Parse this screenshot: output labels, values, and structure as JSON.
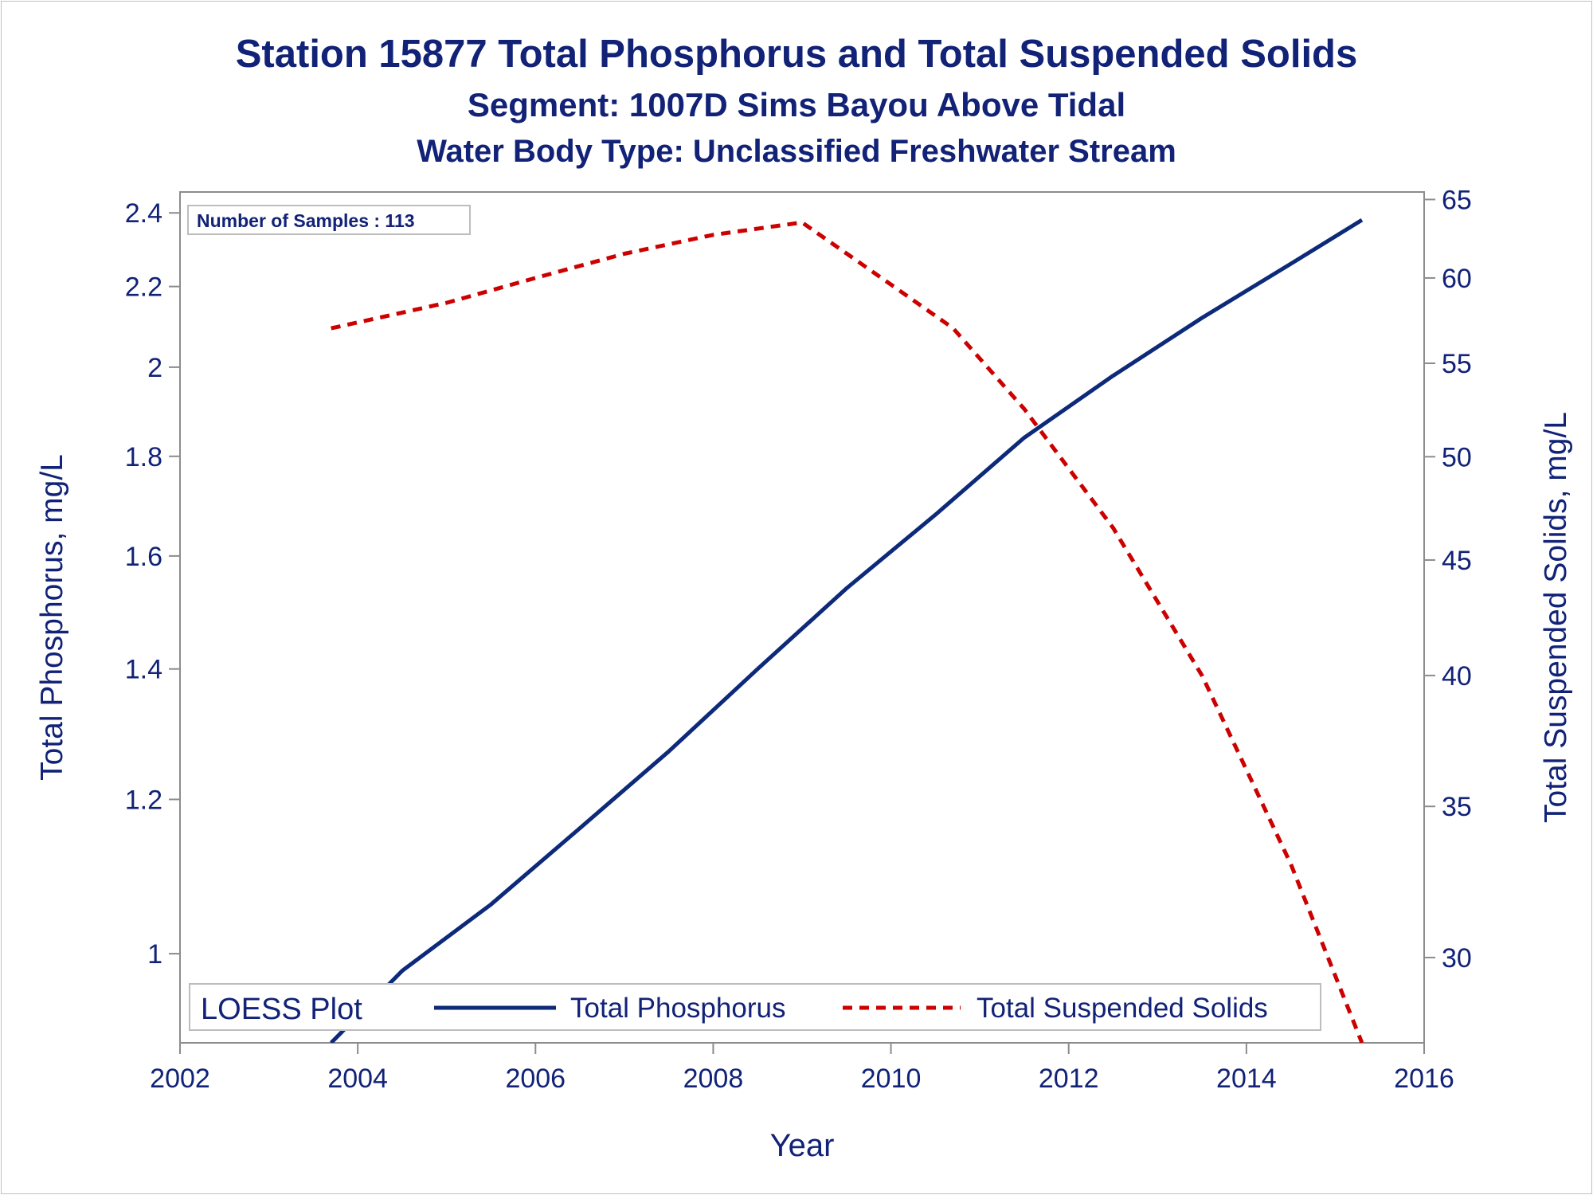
{
  "titles": {
    "line1": "Station 15877  Total Phosphorus and Total Suspended Solids",
    "line2": "Segment: 1007D  Sims Bayou Above Tidal",
    "line3": "Water Body Type: Unclassified Freshwater Stream"
  },
  "inset": {
    "label": "Number of Samples : 113"
  },
  "legend": {
    "title": "LOESS Plot",
    "items": [
      "Total Phosphorus",
      "Total Suspended Solids"
    ]
  },
  "colors": {
    "text": "#112277",
    "tp": "#0d2a7a",
    "tss": "#cc0000",
    "axis": "#8c8c8c"
  },
  "chart_data": {
    "type": "line",
    "xlabel": "Year",
    "ylabel": "Total Phosphorus, mg/L",
    "y2label": "Total Suspended Solids, mg/L",
    "xlim": [
      2002,
      2016
    ],
    "ylim": [
      0.9,
      2.46
    ],
    "y2lim": [
      27.5,
      65.5
    ],
    "log_scale_y": true,
    "log_scale_y2": true,
    "xticks": [
      "2002",
      "2004",
      "2006",
      "2008",
      "2010",
      "2012",
      "2014",
      "2016"
    ],
    "yticks": [
      "1",
      "1.2",
      "1.4",
      "1.6",
      "1.8",
      "2",
      "2.2",
      "2.4"
    ],
    "y2ticks": [
      "30",
      "35",
      "40",
      "45",
      "50",
      "55",
      "60",
      "65"
    ],
    "series": [
      {
        "name": "Total Phosphorus",
        "axis": "left",
        "style": "solid",
        "x": [
          2003.7,
          2004.5,
          2005.5,
          2006.5,
          2007.5,
          2008.5,
          2009.5,
          2010.5,
          2011.5,
          2012.5,
          2013.5,
          2014.5,
          2015.3
        ],
        "y": [
          0.9,
          0.98,
          1.06,
          1.16,
          1.27,
          1.4,
          1.54,
          1.68,
          1.84,
          1.98,
          2.12,
          2.26,
          2.38
        ]
      },
      {
        "name": "Total Suspended Solids",
        "axis": "right",
        "style": "dashed",
        "x": [
          2003.7,
          2005,
          2006,
          2007,
          2008,
          2009,
          2010,
          2010.7,
          2011.5,
          2012.5,
          2013.5,
          2014.5,
          2015.3
        ],
        "y": [
          57,
          58.5,
          60,
          61.5,
          62.7,
          63.5,
          59.6,
          57,
          52.5,
          46.5,
          40,
          33,
          27.5
        ]
      }
    ]
  }
}
